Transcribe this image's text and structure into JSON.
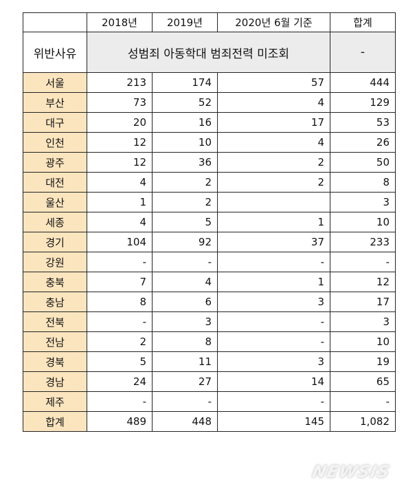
{
  "table": {
    "header": {
      "corner": "",
      "col_2018": "2018년",
      "col_2019": "2019년",
      "col_2020": "2020년 6월 기준",
      "col_total": "합계"
    },
    "reason_row": {
      "label": "위반사유",
      "merged_value": "성범죄 아동학대 범죄전력 미조회",
      "total_value": "-"
    },
    "rows": [
      {
        "region": "서울",
        "y2018": "213",
        "y2019": "174",
        "y2020": "57",
        "total": "444"
      },
      {
        "region": "부산",
        "y2018": "73",
        "y2019": "52",
        "y2020": "4",
        "total": "129"
      },
      {
        "region": "대구",
        "y2018": "20",
        "y2019": "16",
        "y2020": "17",
        "total": "53"
      },
      {
        "region": "인천",
        "y2018": "12",
        "y2019": "10",
        "y2020": "4",
        "total": "26"
      },
      {
        "region": "광주",
        "y2018": "12",
        "y2019": "36",
        "y2020": "2",
        "total": "50"
      },
      {
        "region": "대전",
        "y2018": "4",
        "y2019": "2",
        "y2020": "2",
        "total": "8"
      },
      {
        "region": "울산",
        "y2018": "1",
        "y2019": "2",
        "y2020": "",
        "total": "3"
      },
      {
        "region": "세종",
        "y2018": "4",
        "y2019": "5",
        "y2020": "1",
        "total": "10"
      },
      {
        "region": "경기",
        "y2018": "104",
        "y2019": "92",
        "y2020": "37",
        "total": "233"
      },
      {
        "region": "강원",
        "y2018": "-",
        "y2019": "-",
        "y2020": "-",
        "total": "-"
      },
      {
        "region": "충북",
        "y2018": "7",
        "y2019": "4",
        "y2020": "1",
        "total": "12"
      },
      {
        "region": "충남",
        "y2018": "8",
        "y2019": "6",
        "y2020": "3",
        "total": "17"
      },
      {
        "region": "전북",
        "y2018": "-",
        "y2019": "3",
        "y2020": "-",
        "total": "3"
      },
      {
        "region": "전남",
        "y2018": "2",
        "y2019": "8",
        "y2020": "-",
        "total": "10"
      },
      {
        "region": "경북",
        "y2018": "5",
        "y2019": "11",
        "y2020": "3",
        "total": "19"
      },
      {
        "region": "경남",
        "y2018": "24",
        "y2019": "27",
        "y2020": "14",
        "total": "65"
      },
      {
        "region": "제주",
        "y2018": "-",
        "y2019": "-",
        "y2020": "-",
        "total": "-"
      }
    ],
    "total_row": {
      "region": "합계",
      "y2018": "489",
      "y2019": "448",
      "y2020": "145",
      "total": "1,082"
    }
  },
  "watermark": {
    "text": "NEWSIS"
  },
  "colors": {
    "region_fill": "#fbe5bf",
    "reason_fill": "#ececec",
    "border": "#222222"
  }
}
